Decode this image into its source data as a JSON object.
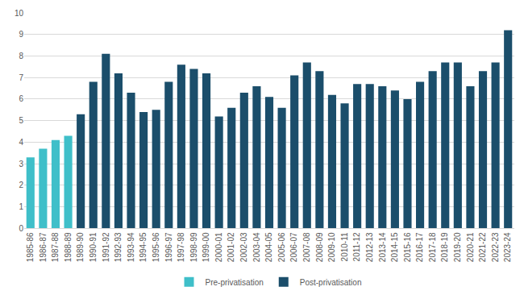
{
  "chart_data": {
    "type": "bar",
    "categories": [
      "1985-86",
      "1986-87",
      "1987-88",
      "1988-89",
      "1989-90",
      "1990-91",
      "1991-92",
      "1992-93",
      "1993-94",
      "1994-95",
      "1995-96",
      "1996-97",
      "1997-98",
      "1998-99",
      "1999-00",
      "2000-01",
      "2001-02",
      "2002-03",
      "2003-04",
      "2004-05",
      "2005-06",
      "2006-07",
      "2007-08",
      "2008-09",
      "2009-10",
      "2010-11",
      "2011-12",
      "2012-13",
      "2013-14",
      "2014-15",
      "2015-16",
      "2016-17",
      "2017-18",
      "2018-19",
      "2019-20",
      "2020-21",
      "2021-22",
      "2022-23",
      "2023-24"
    ],
    "series": [
      {
        "name": "Pre-privatisation",
        "color": "#3fbfc9",
        "values": [
          3.3,
          3.7,
          4.1,
          4.3,
          null,
          null,
          null,
          null,
          null,
          null,
          null,
          null,
          null,
          null,
          null,
          null,
          null,
          null,
          null,
          null,
          null,
          null,
          null,
          null,
          null,
          null,
          null,
          null,
          null,
          null,
          null,
          null,
          null,
          null,
          null,
          null,
          null,
          null,
          null
        ]
      },
      {
        "name": "Post-privatisation",
        "color": "#1b4e6b",
        "values": [
          null,
          null,
          null,
          null,
          5.3,
          6.8,
          8.1,
          7.2,
          6.3,
          5.4,
          5.5,
          6.8,
          7.6,
          7.4,
          7.2,
          5.2,
          5.6,
          6.3,
          6.6,
          6.1,
          5.6,
          7.1,
          7.7,
          7.3,
          6.2,
          5.8,
          6.7,
          6.7,
          6.6,
          6.4,
          6.0,
          6.8,
          7.3,
          7.7,
          7.7,
          6.6,
          7.3,
          7.7,
          9.2
        ]
      }
    ],
    "ylim": [
      0,
      10
    ],
    "yticks": [
      0,
      1,
      2,
      3,
      4,
      5,
      6,
      7,
      8,
      9,
      10
    ],
    "grid": true,
    "legend": "bottom"
  }
}
